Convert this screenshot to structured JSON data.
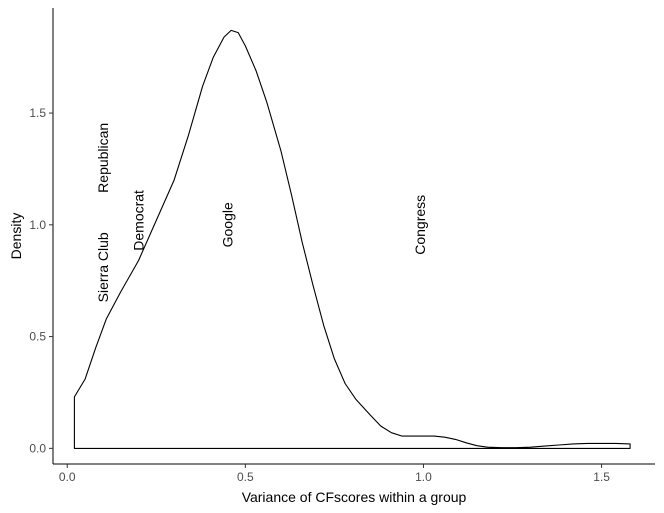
{
  "chart_data": {
    "type": "area",
    "title": "",
    "xlabel": "Variance of CFscores within a group",
    "ylabel": "Density",
    "xlim": [
      -0.04,
      1.65
    ],
    "ylim": [
      -0.07,
      1.97
    ],
    "xticks": [
      0.0,
      0.5,
      1.0,
      1.5
    ],
    "xtick_labels": [
      "0.0",
      "0.5",
      "1.0",
      "1.5"
    ],
    "yticks": [
      0.0,
      0.5,
      1.0,
      1.5
    ],
    "ytick_labels": [
      "0.0",
      "0.5",
      "1.0",
      "1.5"
    ],
    "grid": false,
    "legend": "none",
    "line_color": "#000000",
    "fill_color": "#ffffff",
    "series": [
      {
        "x": [
          0.02,
          0.02,
          0.05,
          0.08,
          0.11,
          0.15,
          0.2,
          0.25,
          0.3,
          0.34,
          0.38,
          0.41,
          0.44,
          0.46,
          0.48,
          0.5,
          0.53,
          0.56,
          0.6,
          0.63,
          0.66,
          0.69,
          0.72,
          0.75,
          0.78,
          0.81,
          0.85,
          0.88,
          0.91,
          0.94,
          0.97,
          1.0,
          1.03,
          1.06,
          1.09,
          1.12,
          1.15,
          1.18,
          1.22,
          1.26,
          1.3,
          1.34,
          1.38,
          1.42,
          1.46,
          1.5,
          1.54,
          1.58,
          1.58
        ],
        "y": [
          0.0,
          0.23,
          0.31,
          0.45,
          0.58,
          0.7,
          0.84,
          1.02,
          1.2,
          1.4,
          1.62,
          1.75,
          1.84,
          1.87,
          1.86,
          1.8,
          1.69,
          1.55,
          1.33,
          1.13,
          0.92,
          0.73,
          0.55,
          0.4,
          0.29,
          0.22,
          0.15,
          0.1,
          0.07,
          0.055,
          0.055,
          0.055,
          0.055,
          0.05,
          0.04,
          0.025,
          0.012,
          0.005,
          0.003,
          0.003,
          0.005,
          0.01,
          0.015,
          0.02,
          0.022,
          0.022,
          0.022,
          0.02,
          0.0
        ]
      }
    ],
    "annotations": [
      {
        "text": "Sierra Club",
        "x": 0.1,
        "y": 0.81
      },
      {
        "text": "Republican",
        "x": 0.1,
        "y": 1.3
      },
      {
        "text": "Democrat",
        "x": 0.2,
        "y": 1.02
      },
      {
        "text": "Google",
        "x": 0.45,
        "y": 1.0
      },
      {
        "text": "Congress",
        "x": 0.99,
        "y": 1.0
      }
    ]
  }
}
